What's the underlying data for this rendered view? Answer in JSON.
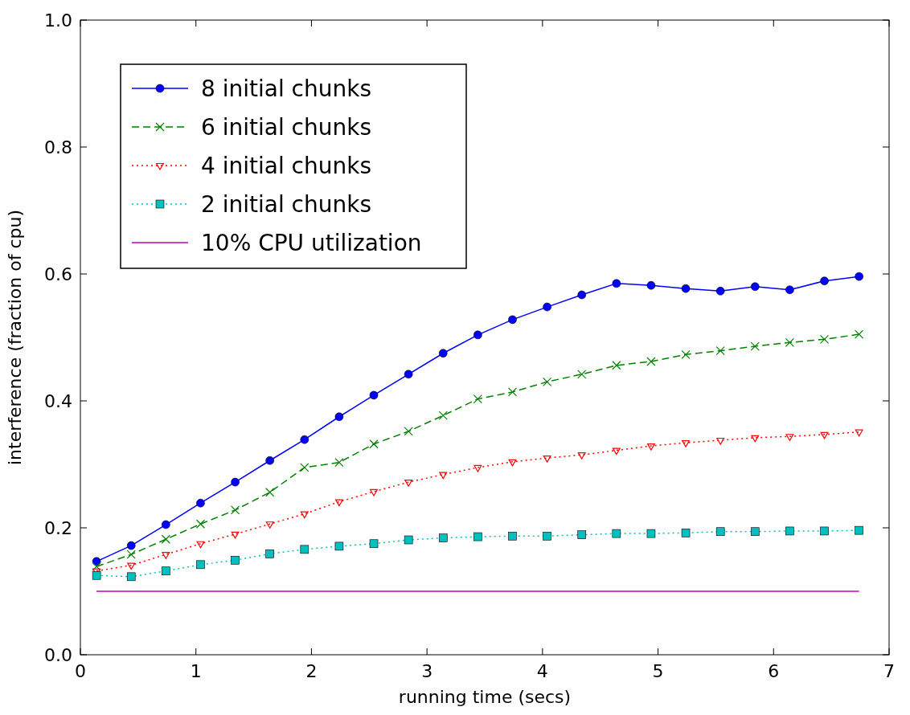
{
  "chart_data": {
    "type": "line",
    "xlabel": "running time (secs)",
    "ylabel": "interference (fraction of cpu)",
    "x": [
      0.14,
      0.44,
      0.74,
      1.04,
      1.34,
      1.64,
      1.94,
      2.24,
      2.54,
      2.84,
      3.14,
      3.44,
      3.74,
      4.04,
      4.34,
      4.64,
      4.94,
      5.24,
      5.54,
      5.84,
      6.14,
      6.44,
      6.74
    ],
    "xlim": [
      0,
      7
    ],
    "xticks": [
      0,
      1,
      2,
      3,
      4,
      5,
      6,
      7
    ],
    "ylim": [
      0,
      1
    ],
    "yticks": [
      {
        "value": 0,
        "label": "0.0"
      },
      0.2,
      0.4,
      0.6,
      0.8,
      {
        "value": 1,
        "label": "1.0"
      }
    ],
    "grid": false,
    "legend": "top left",
    "series": [
      {
        "name": "8 initial chunks",
        "color": "#0000ff",
        "marker": "circle",
        "line_style": "solid",
        "values": [
          0.147,
          0.172,
          0.205,
          0.239,
          0.272,
          0.306,
          0.339,
          0.375,
          0.409,
          0.442,
          0.475,
          0.504,
          0.528,
          0.548,
          0.567,
          0.585,
          0.582,
          0.577,
          0.573,
          0.58,
          0.575,
          0.589,
          0.596
        ]
      },
      {
        "name": "6 initial chunks",
        "color": "#008000",
        "marker": "cross",
        "line_style": "dashed",
        "values": [
          0.139,
          0.158,
          0.182,
          0.206,
          0.228,
          0.256,
          0.295,
          0.303,
          0.332,
          0.352,
          0.377,
          0.403,
          0.414,
          0.43,
          0.442,
          0.456,
          0.462,
          0.473,
          0.479,
          0.486,
          0.492,
          0.497,
          0.505
        ]
      },
      {
        "name": "4 initial chunks",
        "color": "#ff0000",
        "marker": "triangle",
        "line_style": "dotted",
        "values": [
          0.132,
          0.141,
          0.158,
          0.175,
          0.19,
          0.206,
          0.222,
          0.241,
          0.257,
          0.272,
          0.284,
          0.295,
          0.304,
          0.31,
          0.315,
          0.322,
          0.329,
          0.334,
          0.338,
          0.342,
          0.344,
          0.347,
          0.351
        ]
      },
      {
        "name": "2 initial chunks",
        "color": "#00bfbf",
        "marker": "square",
        "line_style": "dotted",
        "values": [
          0.125,
          0.123,
          0.132,
          0.142,
          0.149,
          0.159,
          0.166,
          0.171,
          0.175,
          0.181,
          0.184,
          0.186,
          0.187,
          0.187,
          0.189,
          0.191,
          0.191,
          0.192,
          0.194,
          0.194,
          0.195,
          0.195,
          0.196
        ]
      },
      {
        "name": "10% CPU utilization",
        "color": "#bf00bf",
        "marker": "none",
        "line_style": "solid",
        "x": [
          0.14,
          6.74
        ],
        "values": [
          0.1,
          0.1
        ]
      }
    ]
  }
}
